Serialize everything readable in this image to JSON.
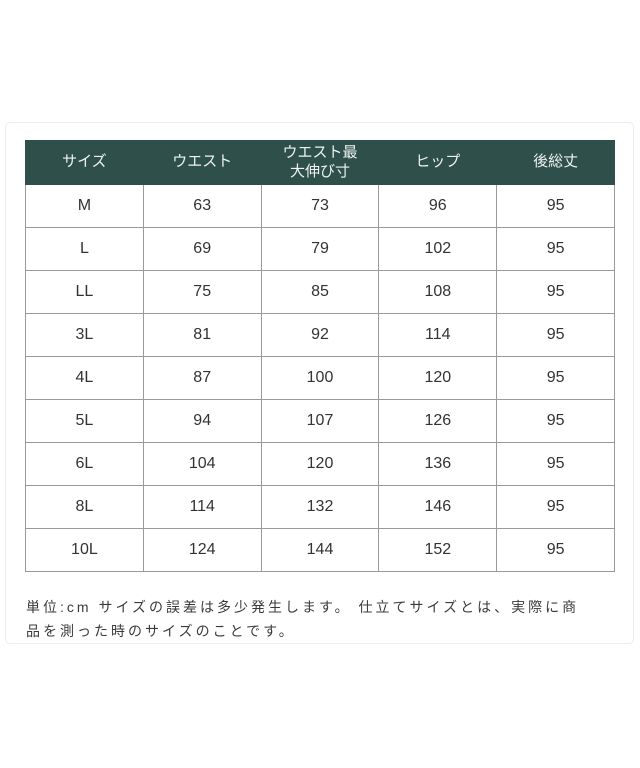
{
  "colors": {
    "header_bg": "#2f504a",
    "header_text": "#edf2f1",
    "grid_line": "#9a9a9a",
    "cell_text": "#333333",
    "card_border": "#ededed",
    "note_text": "#3a3a3a",
    "page_bg": "#ffffff"
  },
  "chart_data": {
    "type": "table",
    "unit": "cm",
    "columns": [
      "サイズ",
      "ウエスト",
      "ウエスト最\n大伸び寸",
      "ヒップ",
      "後総丈"
    ],
    "rows": [
      {
        "size": "M",
        "waist": "63",
        "waist_max": "73",
        "hip": "96",
        "back_length": "95"
      },
      {
        "size": "L",
        "waist": "69",
        "waist_max": "79",
        "hip": "102",
        "back_length": "95"
      },
      {
        "size": "LL",
        "waist": "75",
        "waist_max": "85",
        "hip": "108",
        "back_length": "95"
      },
      {
        "size": "3L",
        "waist": "81",
        "waist_max": "92",
        "hip": "114",
        "back_length": "95"
      },
      {
        "size": "4L",
        "waist": "87",
        "waist_max": "100",
        "hip": "120",
        "back_length": "95"
      },
      {
        "size": "5L",
        "waist": "94",
        "waist_max": "107",
        "hip": "126",
        "back_length": "95"
      },
      {
        "size": "6L",
        "waist": "104",
        "waist_max": "120",
        "hip": "136",
        "back_length": "95"
      },
      {
        "size": "8L",
        "waist": "114",
        "waist_max": "132",
        "hip": "146",
        "back_length": "95"
      },
      {
        "size": "10L",
        "waist": "124",
        "waist_max": "144",
        "hip": "152",
        "back_length": "95"
      }
    ]
  },
  "note": {
    "lines": [
      "単位:cm サイズの誤差は多少発生します。 仕立てサイズとは、実際に商",
      "品を測った時のサイズのことです。"
    ]
  }
}
